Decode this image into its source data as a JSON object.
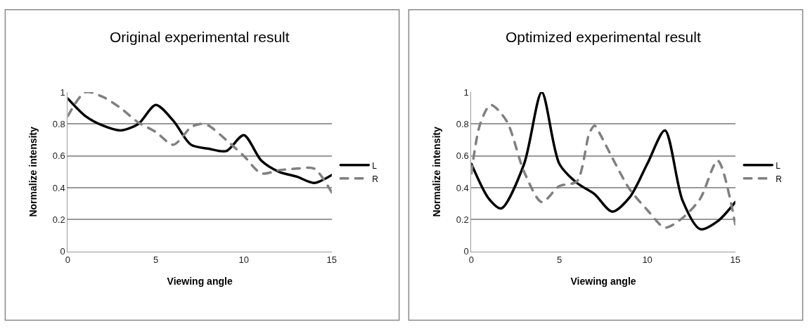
{
  "chart_data": [
    {
      "type": "line",
      "title": "Original experimental result",
      "xlabel": "Viewing angle",
      "ylabel": "Normalize intensity",
      "xlim": [
        0,
        15
      ],
      "xticks": [
        0,
        5,
        10,
        15
      ],
      "ylim": [
        0,
        1
      ],
      "yticks": [
        0,
        0.2,
        0.4,
        0.6,
        0.8,
        1
      ],
      "grid": "y",
      "legend": "right",
      "marker": "none",
      "series": [
        {
          "name": "L",
          "color": "#000000",
          "line_style": "solid",
          "x": [
            0,
            1,
            2,
            3,
            4,
            5,
            6,
            7,
            8,
            9,
            10,
            11,
            12,
            13,
            14,
            15
          ],
          "values": [
            0.96,
            0.85,
            0.79,
            0.76,
            0.8,
            0.92,
            0.82,
            0.67,
            0.645,
            0.63,
            0.73,
            0.57,
            0.5,
            0.47,
            0.43,
            0.48
          ]
        },
        {
          "name": "R",
          "color": "#808080",
          "line_style": "dashed",
          "x": [
            0,
            1,
            2,
            3,
            4,
            5,
            6,
            7,
            7.5,
            8,
            9,
            10,
            11,
            12,
            13,
            14,
            15
          ],
          "values": [
            0.85,
            1.0,
            0.97,
            0.9,
            0.81,
            0.75,
            0.67,
            0.78,
            0.8,
            0.79,
            0.7,
            0.6,
            0.49,
            0.51,
            0.52,
            0.52,
            0.37
          ]
        }
      ]
    },
    {
      "type": "line",
      "title": "Optimized experimental result",
      "xlabel": "Viewing angle",
      "ylabel": "Normalize intensity",
      "xlim": [
        0,
        15
      ],
      "xticks": [
        0,
        5,
        10,
        15
      ],
      "ylim": [
        0,
        1
      ],
      "yticks": [
        0,
        0.2,
        0.4,
        0.6,
        0.8,
        1
      ],
      "grid": "y",
      "legend": "right",
      "marker": "none",
      "series": [
        {
          "name": "L",
          "color": "#000000",
          "line_style": "solid",
          "x": [
            0,
            1,
            1.7,
            3,
            4,
            5,
            6,
            7,
            8,
            9,
            10,
            11,
            12,
            13,
            14,
            15
          ],
          "values": [
            0.55,
            0.33,
            0.27,
            0.55,
            1.0,
            0.55,
            0.43,
            0.36,
            0.25,
            0.34,
            0.55,
            0.76,
            0.32,
            0.14,
            0.19,
            0.31
          ]
        },
        {
          "name": "R",
          "color": "#808080",
          "line_style": "dashed",
          "x": [
            0,
            0.5,
            1.1,
            2,
            3,
            4,
            5,
            6,
            6.7,
            7,
            7.3,
            8,
            9,
            10,
            11,
            12,
            13,
            14,
            15
          ],
          "values": [
            0.49,
            0.8,
            0.92,
            0.82,
            0.5,
            0.31,
            0.41,
            0.44,
            0.74,
            0.79,
            0.74,
            0.59,
            0.39,
            0.26,
            0.15,
            0.21,
            0.33,
            0.57,
            0.17
          ]
        }
      ]
    }
  ]
}
